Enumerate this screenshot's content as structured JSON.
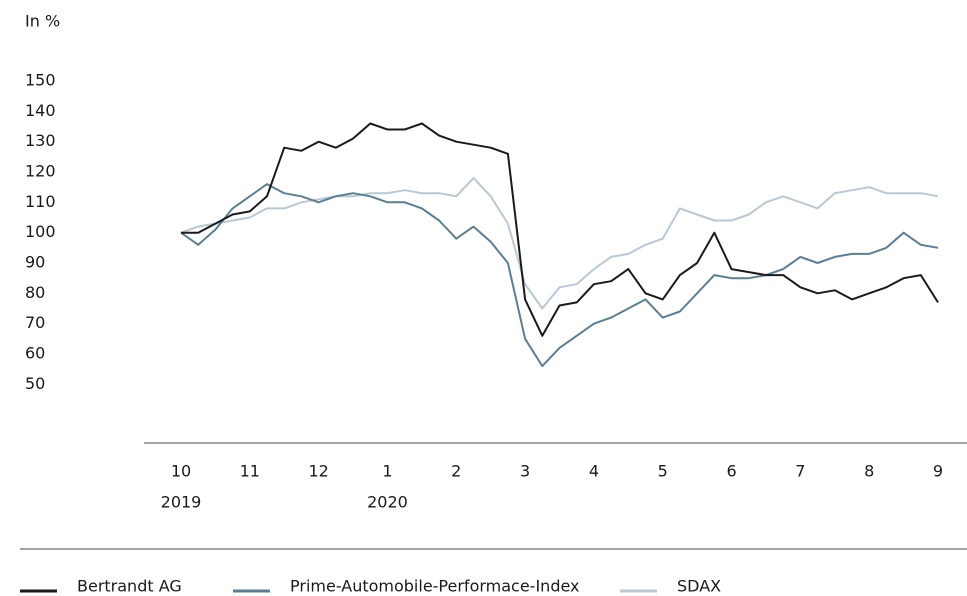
{
  "chart_data": {
    "type": "line",
    "ylabel": "In %",
    "categories": [
      "10",
      null,
      null,
      null,
      "11",
      null,
      null,
      null,
      "12",
      null,
      null,
      null,
      "1",
      null,
      null,
      null,
      "2",
      null,
      null,
      null,
      "3",
      null,
      null,
      null,
      "4",
      null,
      null,
      null,
      "5",
      null,
      null,
      null,
      "6",
      null,
      null,
      null,
      "7",
      null,
      null,
      null,
      "8",
      null,
      null,
      null,
      "9"
    ],
    "category_years": [
      "2019",
      null,
      null,
      null,
      null,
      null,
      null,
      null,
      null,
      null,
      null,
      null,
      "2020",
      null,
      null,
      null,
      null,
      null,
      null,
      null,
      null,
      null,
      null,
      null,
      null,
      null,
      null,
      null,
      null,
      null,
      null,
      null,
      null,
      null,
      null,
      null,
      null,
      null,
      null,
      null,
      null,
      null,
      null,
      null,
      null
    ],
    "ylim": [
      30,
      150
    ],
    "yticks": [
      50,
      60,
      70,
      80,
      90,
      100,
      110,
      120,
      130,
      140,
      150
    ],
    "series": [
      {
        "name": "Bertrandt AG",
        "color": "#1a1a1a",
        "values": [
          100,
          100,
          103,
          106,
          107,
          112,
          128,
          127,
          130,
          128,
          131,
          136,
          134,
          134,
          136,
          132,
          130,
          129,
          128,
          126,
          78,
          66,
          76,
          77,
          83,
          84,
          88,
          80,
          78,
          86,
          90,
          100,
          88,
          87,
          86,
          86,
          82,
          80,
          81,
          78,
          80,
          82,
          85,
          86,
          77
        ]
      },
      {
        "name": "Prime-Automobile-Performace-Index",
        "color": "#5a7f95",
        "values": [
          100,
          96,
          101,
          108,
          112,
          116,
          113,
          112,
          110,
          112,
          113,
          112,
          110,
          110,
          108,
          104,
          98,
          102,
          97,
          90,
          65,
          56,
          62,
          66,
          70,
          72,
          75,
          78,
          72,
          74,
          80,
          86,
          85,
          85,
          86,
          88,
          92,
          90,
          92,
          93,
          93,
          95,
          100,
          96,
          95
        ]
      },
      {
        "name": "SDAX",
        "color": "#b8c8d4",
        "values": [
          100,
          102,
          103,
          104,
          105,
          108,
          108,
          110,
          111,
          112,
          112,
          113,
          113,
          114,
          113,
          113,
          112,
          118,
          112,
          103,
          83,
          75,
          82,
          83,
          88,
          92,
          93,
          96,
          98,
          108,
          106,
          104,
          104,
          106,
          110,
          112,
          110,
          108,
          113,
          114,
          115,
          113,
          113,
          113,
          112
        ]
      }
    ]
  }
}
